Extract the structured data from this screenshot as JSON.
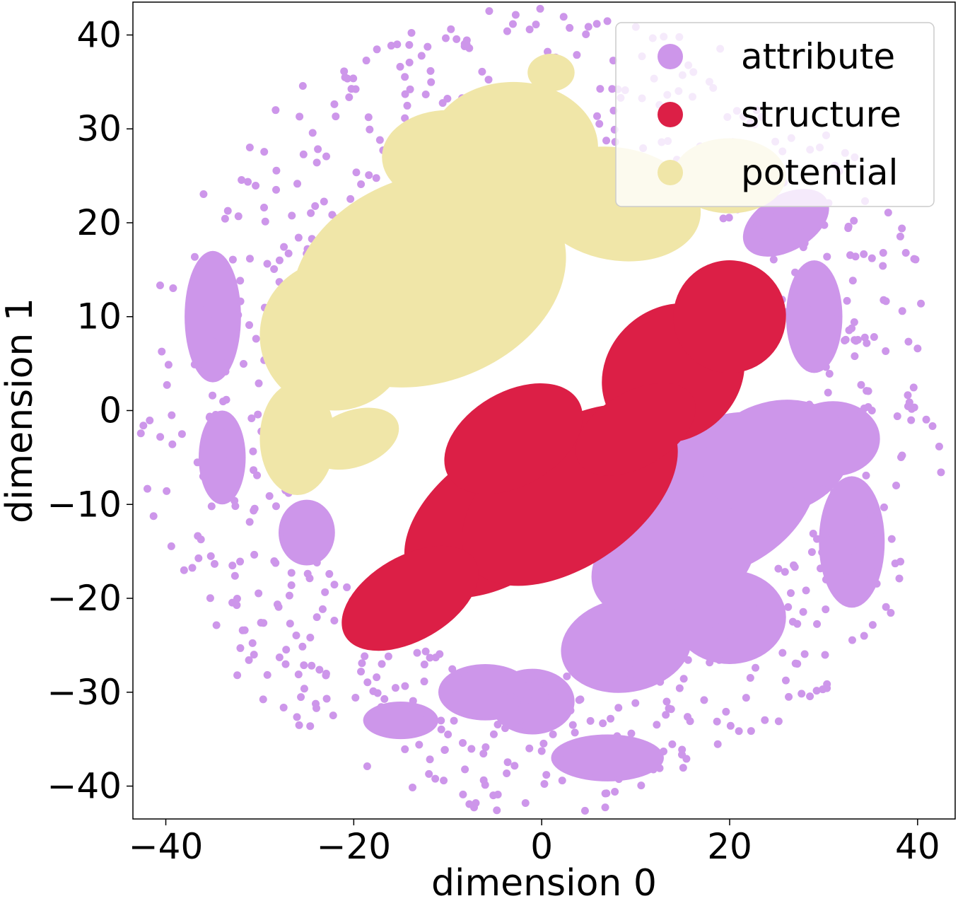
{
  "chart_data": {
    "type": "scatter",
    "title": "",
    "xlabel": "dimension 0",
    "ylabel": "dimension 1",
    "xlim": [
      -43.5,
      44
    ],
    "ylim": [
      -43.5,
      43.5
    ],
    "xticks": [
      -40,
      -20,
      0,
      20,
      40
    ],
    "yticks": [
      -40,
      -30,
      -20,
      -10,
      0,
      10,
      20,
      30,
      40
    ],
    "xtick_labels": [
      "−40",
      "−20",
      "0",
      "20",
      "40"
    ],
    "ytick_labels": [
      "−40",
      "−30",
      "−20",
      "−10",
      "0",
      "10",
      "20",
      "30",
      "40"
    ],
    "grid": false,
    "legend_position": "top-right",
    "series": [
      {
        "name": "attribute",
        "color": "#cd96ea",
        "regions": [
          {
            "cx": 19,
            "cy": -9,
            "rx": 11,
            "ry": 8,
            "rot": 30
          },
          {
            "cx": 25,
            "cy": -5,
            "rx": 8,
            "ry": 6,
            "rot": 15
          },
          {
            "cx": 14,
            "cy": -16,
            "rx": 9,
            "ry": 6,
            "rot": 20
          },
          {
            "cx": 9,
            "cy": -25,
            "rx": 7,
            "ry": 5,
            "rot": 10
          },
          {
            "cx": 20,
            "cy": -22,
            "rx": 6,
            "ry": 5,
            "rot": 0
          },
          {
            "cx": 33,
            "cy": -14,
            "rx": 3.5,
            "ry": 7,
            "rot": 0
          },
          {
            "cx": 31,
            "cy": -3,
            "rx": 5,
            "ry": 4,
            "rot": 0
          },
          {
            "cx": 29,
            "cy": 10,
            "rx": 3,
            "ry": 6,
            "rot": 0
          },
          {
            "cx": 26,
            "cy": 20,
            "rx": 5,
            "ry": 3,
            "rot": 30
          },
          {
            "cx": -1,
            "cy": -31,
            "rx": 4.5,
            "ry": 3.5,
            "rot": 0
          },
          {
            "cx": -6,
            "cy": -30,
            "rx": 5,
            "ry": 3,
            "rot": 0
          },
          {
            "cx": -25,
            "cy": -13,
            "rx": 3,
            "ry": 3.5,
            "rot": 0
          },
          {
            "cx": 7,
            "cy": -37,
            "rx": 6,
            "ry": 2.5,
            "rot": 0
          },
          {
            "cx": -15,
            "cy": -33,
            "rx": 4,
            "ry": 2,
            "rot": 0
          },
          {
            "cx": -35,
            "cy": 10,
            "rx": 3,
            "ry": 7,
            "rot": 0
          },
          {
            "cx": -34,
            "cy": -5,
            "rx": 2.5,
            "ry": 5,
            "rot": 0
          }
        ],
        "ring_scatter": {
          "r_min": 28,
          "r_max": 43,
          "count": 700,
          "seed": 7
        }
      },
      {
        "name": "structure",
        "color": "#dc1f46",
        "regions": [
          {
            "cx": -4,
            "cy": -11,
            "rx": 12,
            "ry": 7,
            "rot": 35
          },
          {
            "cx": 3,
            "cy": -9,
            "rx": 13,
            "ry": 7.5,
            "rot": 35
          },
          {
            "cx": -14,
            "cy": -20,
            "rx": 8,
            "ry": 4.5,
            "rot": 30
          },
          {
            "cx": -3,
            "cy": -3,
            "rx": 8,
            "ry": 5,
            "rot": 30
          },
          {
            "cx": 14,
            "cy": 4,
            "rx": 8,
            "ry": 7,
            "rot": 40
          },
          {
            "cx": 20,
            "cy": 10,
            "rx": 6,
            "ry": 6,
            "rot": 40
          },
          {
            "cx": 10,
            "cy": -2,
            "rx": 7,
            "ry": 4,
            "rot": 30
          }
        ]
      },
      {
        "name": "potential",
        "color": "#f0e6a8",
        "regions": [
          {
            "cx": -12,
            "cy": 14,
            "rx": 15,
            "ry": 11,
            "rot": 20
          },
          {
            "cx": -22,
            "cy": 8,
            "rx": 8,
            "ry": 8,
            "rot": 0
          },
          {
            "cx": -3,
            "cy": 28,
            "rx": 9,
            "ry": 7,
            "rot": 0
          },
          {
            "cx": -10,
            "cy": 27,
            "rx": 7,
            "ry": 5,
            "rot": 0
          },
          {
            "cx": 8,
            "cy": 22,
            "rx": 9,
            "ry": 6,
            "rot": -10
          },
          {
            "cx": -26,
            "cy": -3,
            "rx": 4,
            "ry": 6,
            "rot": 0
          },
          {
            "cx": -20,
            "cy": -3,
            "rx": 5,
            "ry": 3,
            "rot": 20
          },
          {
            "cx": 1,
            "cy": 36,
            "rx": 2.5,
            "ry": 2,
            "rot": 0
          },
          {
            "cx": 20,
            "cy": 25,
            "rx": 6,
            "ry": 4,
            "rot": 0
          }
        ]
      }
    ]
  }
}
